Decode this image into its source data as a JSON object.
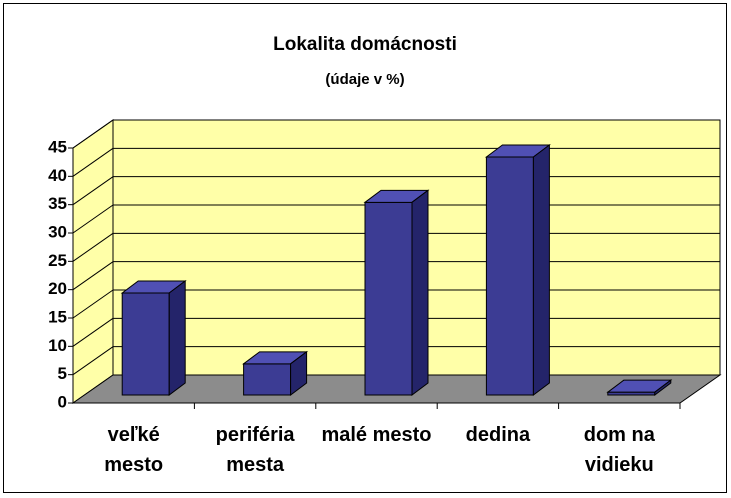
{
  "chart_data": {
    "type": "bar3d",
    "title": "Lokalita domácnosti",
    "subtitle": "(údaje v %)",
    "categories": [
      "veľké mesto",
      "periféria mesta",
      "malé mesto",
      "dedina",
      "dom na vidieku"
    ],
    "values": [
      18,
      5.5,
      34,
      42,
      0.5
    ],
    "color": "#3c3c94",
    "ylim": [
      0,
      45
    ],
    "yticks": [
      0,
      5,
      10,
      15,
      20,
      25,
      30,
      35,
      40,
      45
    ],
    "grid": true
  }
}
